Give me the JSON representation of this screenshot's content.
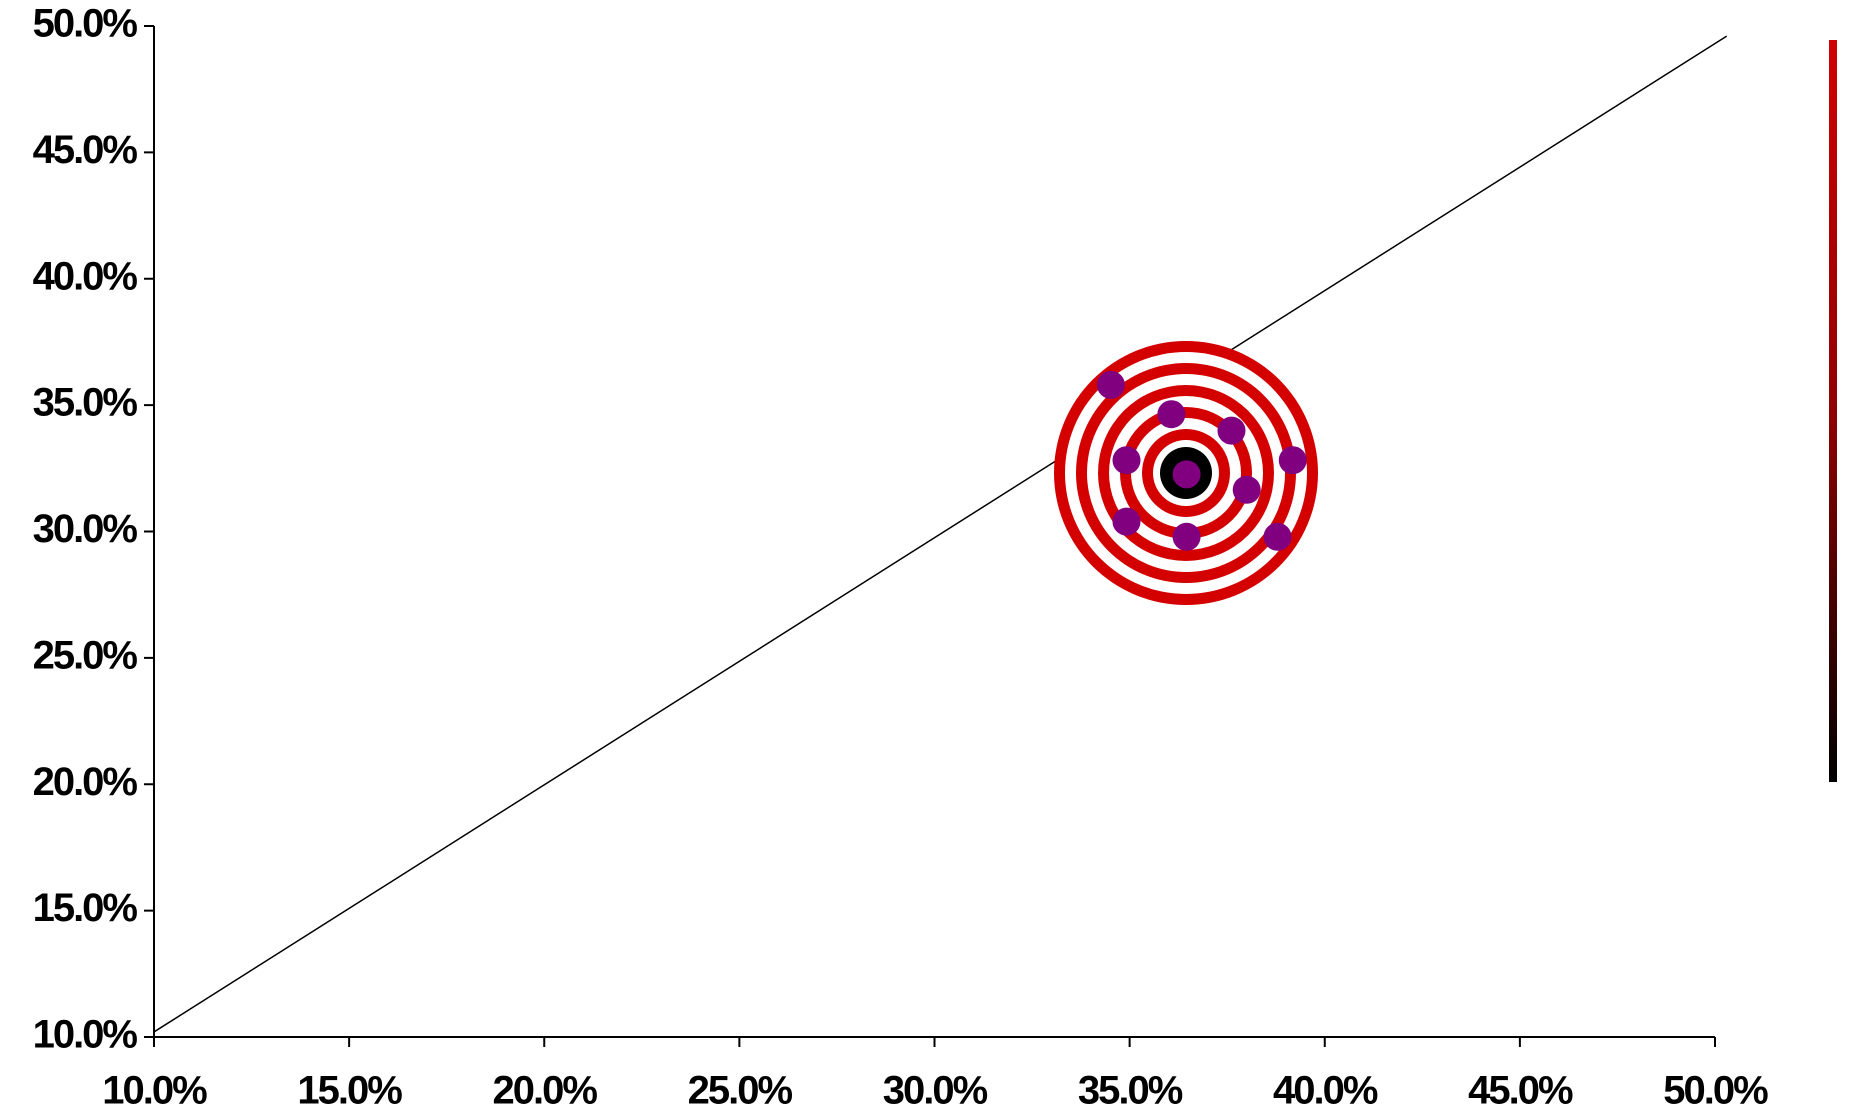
{
  "chart_data": {
    "type": "scatter",
    "x": [
      34.52,
      36.07,
      37.61,
      34.92,
      39.18,
      36.46,
      38.0,
      34.92,
      36.46,
      38.79
    ],
    "series": [
      {
        "color": "#800080",
        "values": [
          35.8,
          34.64,
          33.99,
          32.82,
          32.82,
          32.26,
          31.65,
          30.39,
          29.79,
          29.79
        ]
      }
    ],
    "reference_line": {
      "x": [
        10,
        50.3
      ],
      "y": [
        10.2,
        49.6
      ],
      "color": "#000000"
    },
    "xlim": [
      10,
      50
    ],
    "ylim": [
      10,
      50
    ],
    "xticks": [
      {
        "value": 10,
        "label": "10.0%"
      },
      {
        "value": 15,
        "label": "15.0%"
      },
      {
        "value": 20,
        "label": "20.0%"
      },
      {
        "value": 25,
        "label": "25.0%"
      },
      {
        "value": 30,
        "label": "30.0%"
      },
      {
        "value": 35,
        "label": "35.0%"
      },
      {
        "value": 40,
        "label": "40.0%"
      },
      {
        "value": 45,
        "label": "45.0%"
      },
      {
        "value": 50,
        "label": "50.0%"
      }
    ],
    "yticks": [
      {
        "value": 10,
        "label": "10.0%"
      },
      {
        "value": 15,
        "label": "15.0%"
      },
      {
        "value": 20,
        "label": "20.0%"
      },
      {
        "value": 25,
        "label": "25.0%"
      },
      {
        "value": 30,
        "label": "30.0%"
      },
      {
        "value": 35,
        "label": "35.0%"
      },
      {
        "value": 40,
        "label": "40.0%"
      },
      {
        "value": 45,
        "label": "45.0%"
      },
      {
        "value": 50,
        "label": "50.0%"
      }
    ],
    "grid": false
  }
}
